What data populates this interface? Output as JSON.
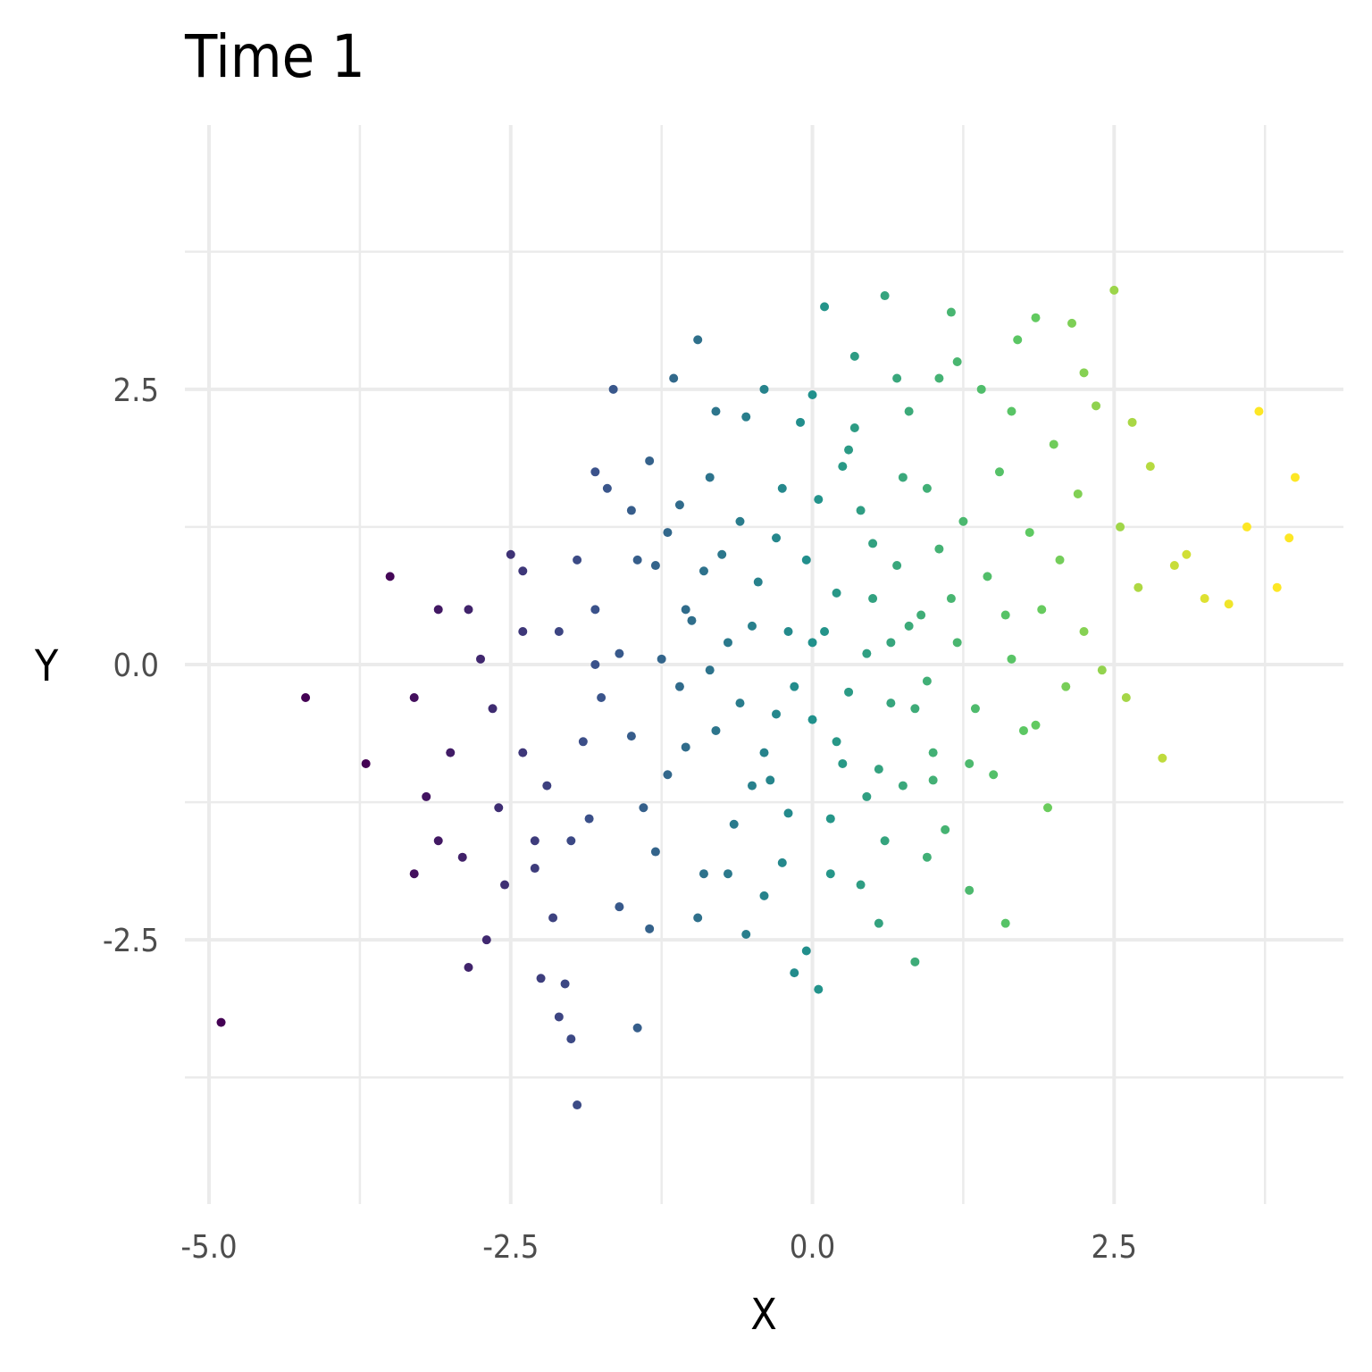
{
  "chart_data": {
    "type": "scatter",
    "title": "Time 1",
    "xlabel": "X",
    "ylabel": "Y",
    "xlim": [
      -5.2,
      4.4
    ],
    "ylim": [
      -4.9,
      4.9
    ],
    "x_ticks": [
      -5.0,
      -2.5,
      0.0,
      2.5
    ],
    "y_ticks": [
      -2.5,
      0.0,
      2.5
    ],
    "x_tick_labels": [
      "-5.0",
      "-2.5",
      "0.0",
      "2.5"
    ],
    "y_tick_labels": [
      "-2.5",
      "0.0",
      "2.5"
    ],
    "color_scale": "viridis",
    "color_mapped_to": "x",
    "grid": true,
    "legend": "none",
    "series": [
      {
        "points": [
          [
            -4.9,
            -3.25
          ],
          [
            -4.2,
            -0.3
          ],
          [
            -3.7,
            -0.9
          ],
          [
            -3.5,
            0.8
          ],
          [
            -3.3,
            -0.3
          ],
          [
            -3.3,
            -1.9
          ],
          [
            -3.1,
            -1.6
          ],
          [
            -3.2,
            -1.2
          ],
          [
            -3.1,
            0.5
          ],
          [
            -2.85,
            0.5
          ],
          [
            -2.85,
            -2.75
          ],
          [
            -2.75,
            0.05
          ],
          [
            -2.7,
            -2.5
          ],
          [
            -2.6,
            -1.3
          ],
          [
            -2.5,
            1.0
          ],
          [
            -2.4,
            0.3
          ],
          [
            -2.4,
            0.85
          ],
          [
            -2.3,
            -1.6
          ],
          [
            -2.25,
            -2.85
          ],
          [
            -2.1,
            -3.2
          ],
          [
            -2.0,
            -3.4
          ],
          [
            -2.0,
            -1.6
          ],
          [
            -1.9,
            -0.7
          ],
          [
            -1.8,
            0.0
          ],
          [
            -1.8,
            0.5
          ],
          [
            -1.8,
            1.75
          ],
          [
            -1.65,
            2.5
          ],
          [
            -1.5,
            1.4
          ],
          [
            -1.4,
            -1.3
          ],
          [
            -1.35,
            -2.4
          ],
          [
            -1.3,
            0.9
          ],
          [
            -1.2,
            1.2
          ],
          [
            -1.15,
            2.6
          ],
          [
            -1.1,
            -0.2
          ],
          [
            -1.05,
            -0.75
          ],
          [
            -1.0,
            0.4
          ],
          [
            -0.95,
            2.95
          ],
          [
            -0.9,
            -1.9
          ],
          [
            -0.85,
            1.7
          ],
          [
            -0.8,
            -0.6
          ],
          [
            -0.7,
            0.2
          ],
          [
            -0.6,
            -0.35
          ],
          [
            -0.55,
            2.25
          ],
          [
            -0.5,
            -1.1
          ],
          [
            -0.45,
            0.75
          ],
          [
            -0.4,
            -0.8
          ],
          [
            -0.3,
            1.15
          ],
          [
            -0.25,
            -1.8
          ],
          [
            -0.2,
            0.3
          ],
          [
            -0.15,
            -0.2
          ],
          [
            -0.1,
            2.2
          ],
          [
            -0.05,
            -2.6
          ],
          [
            0.0,
            -0.5
          ],
          [
            0.05,
            1.5
          ],
          [
            0.1,
            3.25
          ],
          [
            0.15,
            -1.4
          ],
          [
            0.2,
            0.65
          ],
          [
            0.25,
            -0.9
          ],
          [
            0.3,
            1.95
          ],
          [
            0.35,
            2.8
          ],
          [
            0.4,
            -2.0
          ],
          [
            0.45,
            0.1
          ],
          [
            0.5,
            1.1
          ],
          [
            0.55,
            -2.35
          ],
          [
            0.6,
            3.35
          ],
          [
            0.65,
            -0.35
          ],
          [
            0.7,
            0.9
          ],
          [
            0.75,
            -1.1
          ],
          [
            0.8,
            2.3
          ],
          [
            0.85,
            -2.7
          ],
          [
            0.9,
            0.45
          ],
          [
            0.95,
            1.6
          ],
          [
            1.0,
            -0.8
          ],
          [
            1.05,
            2.6
          ],
          [
            1.1,
            -1.5
          ],
          [
            1.15,
            3.2
          ],
          [
            1.2,
            0.2
          ],
          [
            1.25,
            1.3
          ],
          [
            1.3,
            -2.05
          ],
          [
            1.35,
            -0.4
          ],
          [
            1.4,
            2.5
          ],
          [
            1.45,
            0.8
          ],
          [
            1.5,
            -1.0
          ],
          [
            1.55,
            1.75
          ],
          [
            1.6,
            -2.35
          ],
          [
            1.65,
            0.05
          ],
          [
            1.7,
            2.95
          ],
          [
            1.75,
            -0.6
          ],
          [
            1.8,
            1.2
          ],
          [
            1.85,
            3.15
          ],
          [
            1.9,
            0.5
          ],
          [
            1.95,
            -1.3
          ],
          [
            2.0,
            2.0
          ],
          [
            2.05,
            0.95
          ],
          [
            2.1,
            -0.2
          ],
          [
            2.15,
            3.1
          ],
          [
            2.2,
            1.55
          ],
          [
            2.25,
            0.3
          ],
          [
            2.35,
            2.35
          ],
          [
            2.4,
            -0.05
          ],
          [
            2.5,
            3.4
          ],
          [
            2.55,
            1.25
          ],
          [
            2.6,
            -0.3
          ],
          [
            2.65,
            2.2
          ],
          [
            2.7,
            0.7
          ],
          [
            2.8,
            1.8
          ],
          [
            2.9,
            -0.85
          ],
          [
            3.0,
            0.9
          ],
          [
            3.1,
            1.0
          ],
          [
            3.25,
            0.6
          ],
          [
            3.45,
            0.55
          ],
          [
            3.6,
            1.25
          ],
          [
            3.7,
            2.3
          ],
          [
            3.85,
            0.7
          ],
          [
            3.95,
            1.15
          ],
          [
            4.0,
            1.7
          ],
          [
            -1.95,
            -4.0
          ],
          [
            -1.45,
            -3.3
          ],
          [
            -0.55,
            -2.45
          ],
          [
            -0.15,
            -2.8
          ],
          [
            0.05,
            -2.95
          ],
          [
            -0.95,
            -2.3
          ],
          [
            -2.05,
            -2.9
          ],
          [
            -2.2,
            -1.1
          ],
          [
            -2.65,
            -0.4
          ],
          [
            -1.75,
            -0.3
          ],
          [
            -1.6,
            0.1
          ],
          [
            -1.45,
            0.95
          ],
          [
            -1.25,
            0.05
          ],
          [
            -1.05,
            0.5
          ],
          [
            -0.75,
            1.0
          ],
          [
            -0.65,
            -1.45
          ],
          [
            -0.35,
            -1.05
          ],
          [
            -0.25,
            1.6
          ],
          [
            0.1,
            0.3
          ],
          [
            0.3,
            -0.25
          ],
          [
            0.5,
            0.6
          ],
          [
            0.6,
            -1.6
          ],
          [
            0.75,
            1.7
          ],
          [
            0.95,
            -0.15
          ],
          [
            1.15,
            0.6
          ],
          [
            1.3,
            -0.9
          ],
          [
            1.6,
            0.45
          ],
          [
            1.85,
            -0.55
          ],
          [
            -1.2,
            -1.0
          ],
          [
            -0.85,
            -0.05
          ],
          [
            -0.5,
            0.35
          ],
          [
            -0.3,
            -0.45
          ],
          [
            -0.05,
            0.95
          ],
          [
            0.2,
            -0.7
          ],
          [
            0.4,
            1.4
          ],
          [
            0.65,
            0.2
          ],
          [
            0.85,
            -0.4
          ],
          [
            1.05,
            1.05
          ],
          [
            -1.5,
            -0.65
          ],
          [
            -1.1,
            1.45
          ],
          [
            -0.9,
            0.85
          ],
          [
            -0.6,
            1.3
          ],
          [
            -0.2,
            -1.35
          ],
          [
            0.0,
            0.2
          ],
          [
            0.25,
            1.8
          ],
          [
            0.55,
            -0.95
          ],
          [
            0.8,
            0.35
          ],
          [
            1.0,
            -1.05
          ],
          [
            -2.4,
            -0.8
          ],
          [
            -2.1,
            0.3
          ],
          [
            -1.85,
            -1.4
          ],
          [
            -1.6,
            -2.2
          ],
          [
            -1.3,
            -1.7
          ],
          [
            -0.7,
            -1.9
          ],
          [
            -0.4,
            -2.1
          ],
          [
            0.15,
            -1.9
          ],
          [
            0.45,
            -1.2
          ],
          [
            0.95,
            -1.75
          ],
          [
            -3.0,
            -0.8
          ],
          [
            -2.9,
            -1.75
          ],
          [
            -2.55,
            -2.0
          ],
          [
            -2.3,
            -1.85
          ],
          [
            -2.15,
            -2.3
          ],
          [
            -1.95,
            0.95
          ],
          [
            -1.7,
            1.6
          ],
          [
            -1.35,
            1.85
          ],
          [
            -0.8,
            2.3
          ],
          [
            -0.4,
            2.5
          ],
          [
            0.0,
            2.45
          ],
          [
            0.35,
            2.15
          ],
          [
            0.7,
            2.6
          ],
          [
            1.2,
            2.75
          ],
          [
            1.65,
            2.3
          ],
          [
            2.25,
            2.65
          ]
        ]
      }
    ]
  }
}
